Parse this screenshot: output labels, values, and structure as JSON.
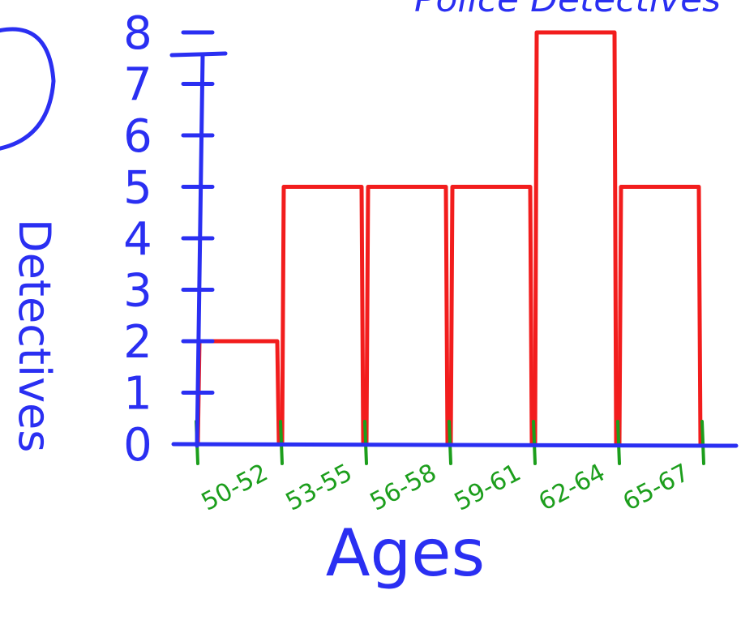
{
  "colors": {
    "axis_ink": "#2a2ff2",
    "bar_ink": "#f21d1d",
    "tick_ink": "#1c9e1c"
  },
  "chart_data": {
    "type": "bar",
    "title": "Police Detectives",
    "xlabel": "Ages",
    "ylabel": "Detectives",
    "categories": [
      "50-52",
      "53-55",
      "56-58",
      "59-61",
      "62-64",
      "65-67"
    ],
    "values": [
      2,
      5,
      5,
      5,
      8,
      5
    ],
    "yticks": [
      "0",
      "1",
      "2",
      "3",
      "4",
      "5",
      "6",
      "7",
      "8"
    ],
    "ylim": [
      0,
      8
    ],
    "grid": false,
    "legend": "none"
  }
}
